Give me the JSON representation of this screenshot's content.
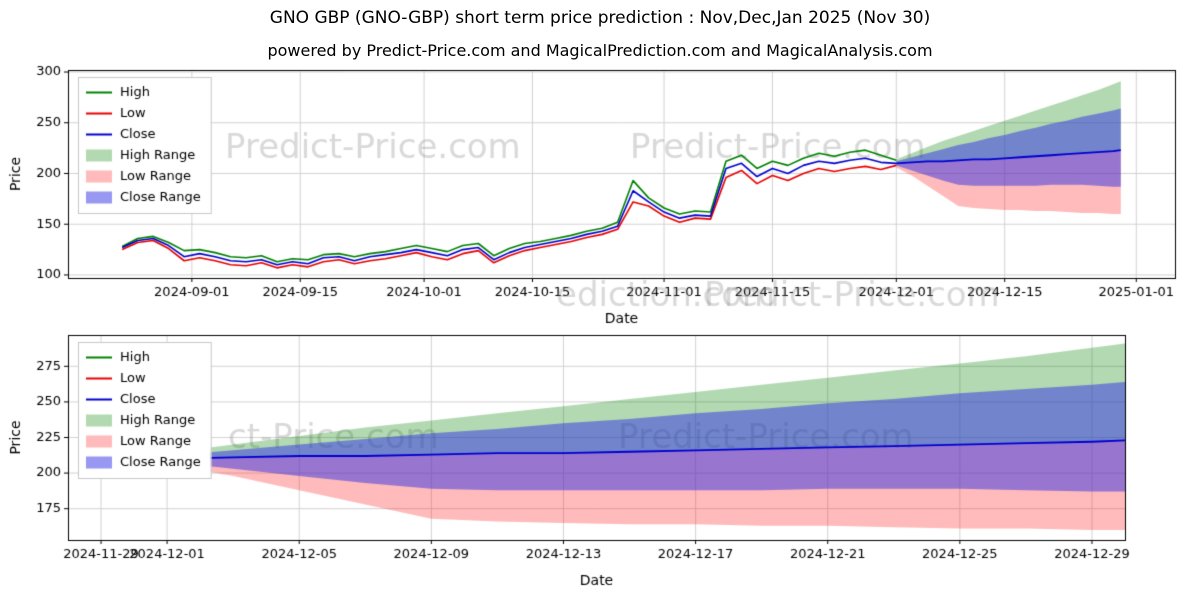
{
  "header": {
    "title": "GNO GBP (GNO-GBP) short term price prediction : Nov,Dec,Jan 2025 (Nov 30)",
    "subtitle": "powered by Predict-Price.com and MagicalPrediction.com and MagicalAnalysis.com"
  },
  "colors": {
    "high": "#008000",
    "low": "#e60000",
    "close": "#0000cd",
    "high_range": "rgba(0,128,0,0.30)",
    "low_range": "rgba(255,30,30,0.30)",
    "close_range": "rgba(50,50,230,0.50)",
    "grid": "#d3d3d3",
    "axis": "#000000",
    "watermark": "rgba(128,128,128,0.30)"
  },
  "legend": [
    {
      "label": "High",
      "type": "line",
      "color_key": "high"
    },
    {
      "label": "Low",
      "type": "line",
      "color_key": "low"
    },
    {
      "label": "Close",
      "type": "line",
      "color_key": "close"
    },
    {
      "label": "High Range",
      "type": "patch",
      "color_key": "high_range"
    },
    {
      "label": "Low Range",
      "type": "patch",
      "color_key": "low_range"
    },
    {
      "label": "Close Range",
      "type": "patch",
      "color_key": "close_range"
    }
  ],
  "watermarks_mid": [
    "ediction.com",
    "Predict-Price.com"
  ],
  "chart_data": [
    {
      "type": "line",
      "title": "",
      "xlabel": "Date",
      "ylabel": "Price",
      "grid": true,
      "legend_position": "upper left",
      "xlim": [
        "2024-08-16",
        "2025-01-06"
      ],
      "ylim": [
        97,
        302
      ],
      "yticks": [
        100,
        150,
        200,
        250,
        300
      ],
      "xticks": [
        "2024-09-01",
        "2024-09-15",
        "2024-10-01",
        "2024-10-15",
        "2024-11-01",
        "2024-11-15",
        "2024-12-01",
        "2024-12-15",
        "2025-01-01"
      ],
      "watermarks": [
        "Predict-Price.com",
        "Predict-Price.com"
      ],
      "history": {
        "dates": [
          "2024-08-23",
          "2024-08-25",
          "2024-08-27",
          "2024-08-29",
          "2024-08-31",
          "2024-09-02",
          "2024-09-04",
          "2024-09-06",
          "2024-09-08",
          "2024-09-10",
          "2024-09-12",
          "2024-09-14",
          "2024-09-16",
          "2024-09-18",
          "2024-09-20",
          "2024-09-22",
          "2024-09-24",
          "2024-09-26",
          "2024-09-28",
          "2024-09-30",
          "2024-10-02",
          "2024-10-04",
          "2024-10-06",
          "2024-10-08",
          "2024-10-10",
          "2024-10-12",
          "2024-10-14",
          "2024-10-16",
          "2024-10-18",
          "2024-10-20",
          "2024-10-22",
          "2024-10-24",
          "2024-10-26",
          "2024-10-28",
          "2024-10-30",
          "2024-11-01",
          "2024-11-03",
          "2024-11-05",
          "2024-11-07",
          "2024-11-09",
          "2024-11-11",
          "2024-11-13",
          "2024-11-15",
          "2024-11-17",
          "2024-11-19",
          "2024-11-21",
          "2024-11-23",
          "2024-11-25",
          "2024-11-27",
          "2024-11-29",
          "2024-12-01"
        ],
        "high": [
          128,
          136,
          138,
          132,
          124,
          125,
          122,
          118,
          117,
          119,
          113,
          116,
          115,
          120,
          121,
          118,
          121,
          123,
          126,
          129,
          126,
          123,
          129,
          131,
          119,
          126,
          131,
          133,
          136,
          139,
          143,
          146,
          152,
          193,
          176,
          166,
          160,
          163,
          162,
          212,
          218,
          205,
          212,
          208,
          215,
          220,
          217,
          221,
          223,
          218,
          213
        ],
        "low": [
          125,
          132,
          134,
          126,
          114,
          117,
          114,
          110,
          109,
          112,
          107,
          110,
          108,
          113,
          115,
          111,
          114,
          116,
          119,
          122,
          118,
          115,
          121,
          124,
          112,
          119,
          124,
          127,
          130,
          133,
          137,
          140,
          145,
          172,
          168,
          158,
          152,
          156,
          155,
          196,
          203,
          190,
          198,
          193,
          200,
          205,
          202,
          205,
          207,
          204,
          208
        ],
        "close": [
          127,
          134,
          136,
          129,
          118,
          121,
          118,
          114,
          113,
          115,
          110,
          113,
          111,
          117,
          118,
          114,
          118,
          120,
          122,
          125,
          122,
          119,
          125,
          127,
          115,
          122,
          127,
          130,
          133,
          136,
          140,
          143,
          148,
          183,
          172,
          162,
          156,
          159,
          158,
          205,
          210,
          197,
          205,
          200,
          208,
          212,
          210,
          213,
          215,
          211,
          210
        ]
      },
      "forecast": {
        "dates": [
          "2024-12-01",
          "2024-12-03",
          "2024-12-05",
          "2024-12-07",
          "2024-12-09",
          "2024-12-11",
          "2024-12-13",
          "2024-12-15",
          "2024-12-17",
          "2024-12-19",
          "2024-12-21",
          "2024-12-23",
          "2024-12-25",
          "2024-12-27",
          "2024-12-29",
          "2024-12-30"
        ],
        "close": [
          210,
          211,
          212,
          212,
          213,
          214,
          214,
          215,
          216,
          217,
          218,
          219,
          220,
          221,
          222,
          223
        ],
        "high_upper": [
          214,
          220,
          226,
          232,
          237,
          242,
          247,
          252,
          257,
          262,
          267,
          272,
          277,
          282,
          288,
          291
        ],
        "low_lower": [
          206,
          198,
          188,
          178,
          168,
          166,
          165,
          164,
          164,
          163,
          163,
          162,
          161,
          161,
          160,
          160
        ],
        "close_upper": [
          212,
          216,
          220,
          224,
          228,
          231,
          235,
          238,
          242,
          245,
          249,
          252,
          256,
          259,
          262,
          264
        ],
        "close_lower": [
          208,
          203,
          198,
          193,
          189,
          188,
          188,
          188,
          188,
          188,
          189,
          189,
          189,
          188,
          187,
          187
        ]
      }
    },
    {
      "type": "line",
      "title": "",
      "xlabel": "Date",
      "ylabel": "Price",
      "grid": true,
      "legend_position": "upper left",
      "xlim": [
        "2024-11-28",
        "2024-12-30"
      ],
      "ylim": [
        153,
        297
      ],
      "yticks": [
        175,
        200,
        225,
        250,
        275
      ],
      "xticks": [
        "2024-11-29",
        "2024-12-01",
        "2024-12-05",
        "2024-12-09",
        "2024-12-13",
        "2024-12-17",
        "2024-12-21",
        "2024-12-25",
        "2024-12-29"
      ],
      "watermarks": [
        "ct-Price.com",
        "Predict-Price.com"
      ],
      "history": {
        "dates": [
          "2024-11-29",
          "2024-12-01"
        ],
        "high": [
          218,
          213
        ],
        "low": [
          204,
          208
        ],
        "close": [
          211,
          210
        ]
      },
      "forecast": {
        "dates": [
          "2024-12-01",
          "2024-12-03",
          "2024-12-05",
          "2024-12-07",
          "2024-12-09",
          "2024-12-11",
          "2024-12-13",
          "2024-12-15",
          "2024-12-17",
          "2024-12-19",
          "2024-12-21",
          "2024-12-23",
          "2024-12-25",
          "2024-12-27",
          "2024-12-29",
          "2024-12-30"
        ],
        "close": [
          210,
          211,
          212,
          212,
          213,
          214,
          214,
          215,
          216,
          217,
          218,
          219,
          220,
          221,
          222,
          223
        ],
        "high_upper": [
          214,
          220,
          226,
          232,
          237,
          242,
          247,
          252,
          257,
          262,
          267,
          272,
          277,
          282,
          288,
          291
        ],
        "low_lower": [
          206,
          198,
          188,
          178,
          168,
          166,
          165,
          164,
          164,
          163,
          163,
          162,
          161,
          161,
          160,
          160
        ],
        "close_upper": [
          212,
          216,
          220,
          224,
          228,
          231,
          235,
          238,
          242,
          245,
          249,
          252,
          256,
          259,
          262,
          264
        ],
        "close_lower": [
          208,
          203,
          198,
          193,
          189,
          188,
          188,
          188,
          188,
          188,
          189,
          189,
          189,
          188,
          187,
          187
        ]
      }
    }
  ]
}
